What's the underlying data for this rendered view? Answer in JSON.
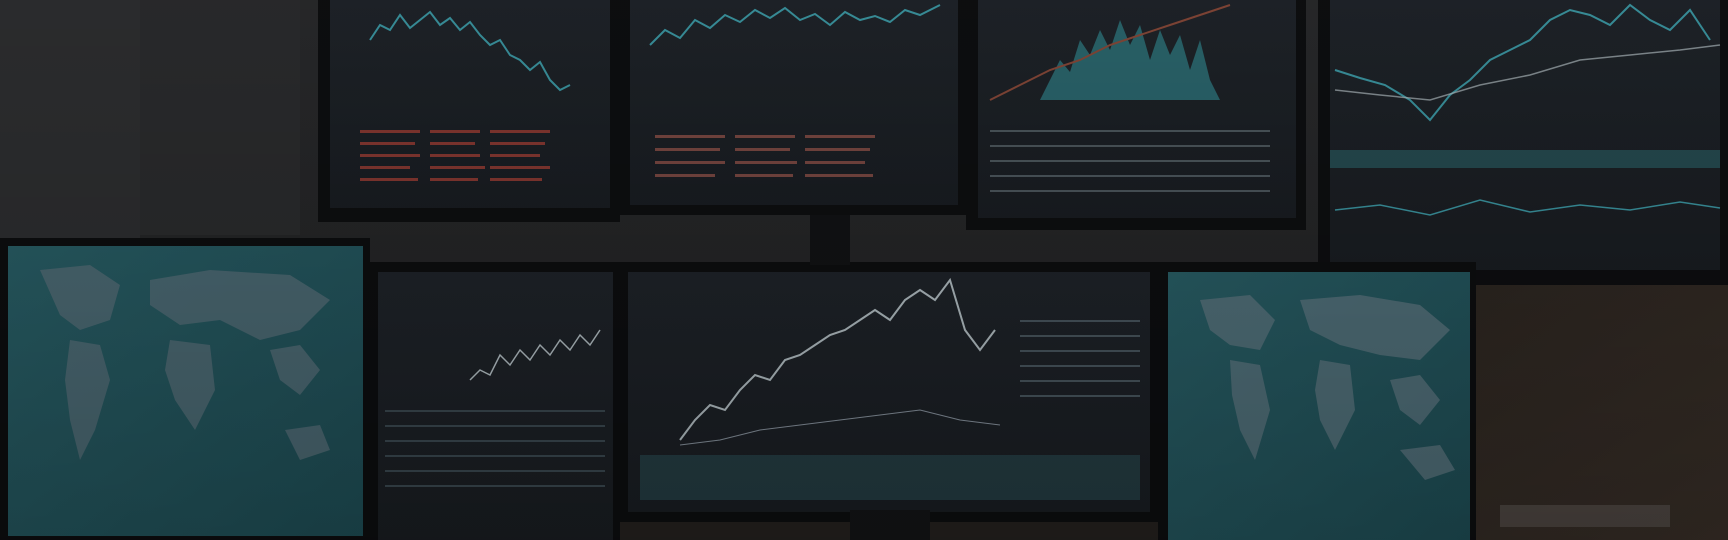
{
  "scene": {
    "description_text": "",
    "palette": {
      "background": "#1b1c1e",
      "wall": "#2a2b2d",
      "desk": "#2d2722",
      "bezel": "#0f1012",
      "screen_dark": "#1d2126",
      "screen_teal": "#245a62",
      "map_land": "#55707a",
      "chart_line_teal": "#3d9aa6",
      "chart_line_light": "#b7c3c8",
      "chart_red": "#8b3a33"
    },
    "monitors": [
      {
        "id": "top-1",
        "content": "line-chart-and-tables"
      },
      {
        "id": "top-2",
        "content": "line-chart-and-tables"
      },
      {
        "id": "top-3",
        "content": "area-chart-and-tables"
      },
      {
        "id": "top-4",
        "content": "multi-line-chart"
      },
      {
        "id": "bottom-left",
        "content": "world-map"
      },
      {
        "id": "bottom-2",
        "content": "chart-and-tables"
      },
      {
        "id": "bottom-center",
        "content": "rising-line-chart"
      },
      {
        "id": "bottom-right",
        "content": "world-map"
      }
    ]
  }
}
